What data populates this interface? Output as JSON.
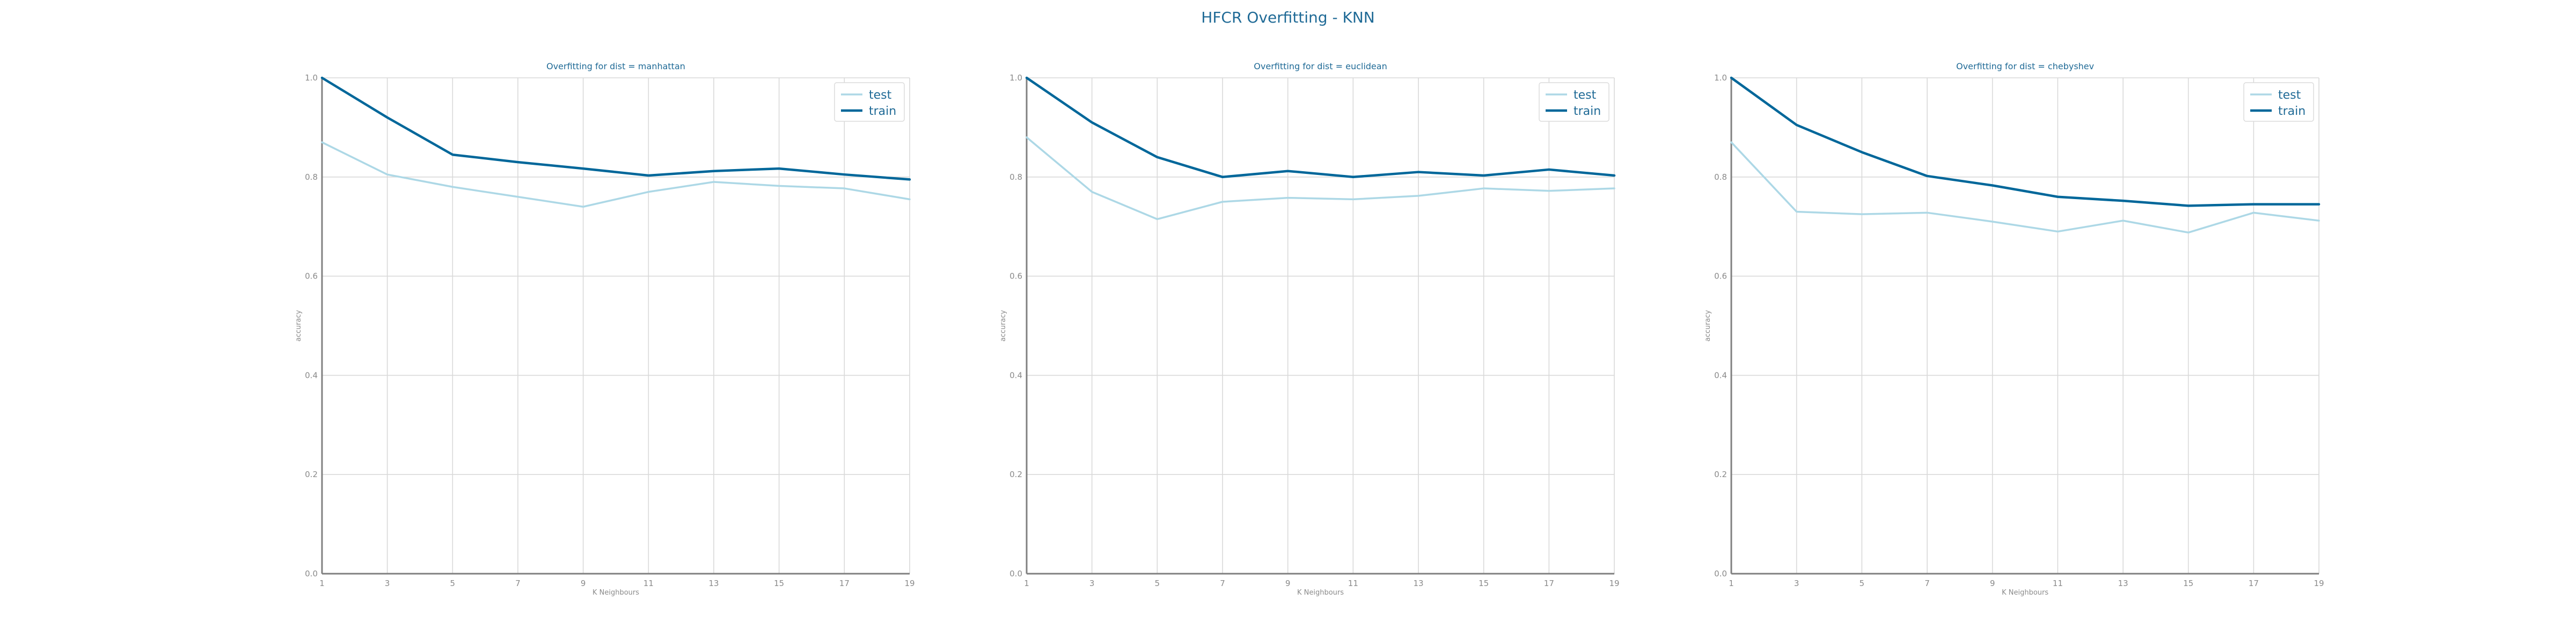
{
  "suptitle": "HFCR Overfitting - KNN",
  "colors": {
    "test": "#add8e6",
    "train": "#00679a",
    "title": "#1f6a96",
    "tick": "#8a8a8a",
    "grid": "#d9d9d9",
    "axis": "#808080"
  },
  "chart_data": [
    {
      "type": "line",
      "title": "Overfitting for dist = manhattan",
      "xlabel": "K Neighbours",
      "ylabel": "accuracy",
      "x": [
        1,
        3,
        5,
        7,
        9,
        11,
        13,
        15,
        17,
        19
      ],
      "xlim": [
        1,
        19
      ],
      "ylim": [
        0.0,
        1.0
      ],
      "yticks": [
        "0.0",
        "0.2",
        "0.4",
        "0.6",
        "0.8",
        "1.0"
      ],
      "grid": true,
      "legend": "top-right",
      "series": [
        {
          "name": "test",
          "values": [
            0.87,
            0.805,
            0.78,
            0.76,
            0.74,
            0.77,
            0.79,
            0.782,
            0.777,
            0.755
          ]
        },
        {
          "name": "train",
          "values": [
            1.0,
            0.92,
            0.845,
            0.83,
            0.817,
            0.803,
            0.812,
            0.817,
            0.805,
            0.795
          ]
        }
      ]
    },
    {
      "type": "line",
      "title": "Overfitting for dist = euclidean",
      "xlabel": "K Neighbours",
      "ylabel": "accuracy",
      "x": [
        1,
        3,
        5,
        7,
        9,
        11,
        13,
        15,
        17,
        19
      ],
      "xlim": [
        1,
        19
      ],
      "ylim": [
        0.0,
        1.0
      ],
      "yticks": [
        "0.0",
        "0.2",
        "0.4",
        "0.6",
        "0.8",
        "1.0"
      ],
      "grid": true,
      "legend": "top-right",
      "series": [
        {
          "name": "test",
          "values": [
            0.88,
            0.77,
            0.715,
            0.75,
            0.758,
            0.755,
            0.762,
            0.777,
            0.772,
            0.777
          ]
        },
        {
          "name": "train",
          "values": [
            1.0,
            0.91,
            0.84,
            0.8,
            0.812,
            0.8,
            0.81,
            0.803,
            0.815,
            0.803
          ]
        }
      ]
    },
    {
      "type": "line",
      "title": "Overfitting for dist = chebyshev",
      "xlabel": "K Neighbours",
      "ylabel": "accuracy",
      "x": [
        1,
        3,
        5,
        7,
        9,
        11,
        13,
        15,
        17,
        19
      ],
      "xlim": [
        1,
        19
      ],
      "ylim": [
        0.0,
        1.0
      ],
      "yticks": [
        "0.0",
        "0.2",
        "0.4",
        "0.6",
        "0.8",
        "1.0"
      ],
      "grid": true,
      "legend": "top-right",
      "series": [
        {
          "name": "test",
          "values": [
            0.87,
            0.73,
            0.725,
            0.728,
            0.71,
            0.69,
            0.712,
            0.688,
            0.728,
            0.712
          ]
        },
        {
          "name": "train",
          "values": [
            1.0,
            0.905,
            0.85,
            0.802,
            0.783,
            0.76,
            0.752,
            0.742,
            0.745,
            0.745
          ]
        }
      ]
    }
  ]
}
